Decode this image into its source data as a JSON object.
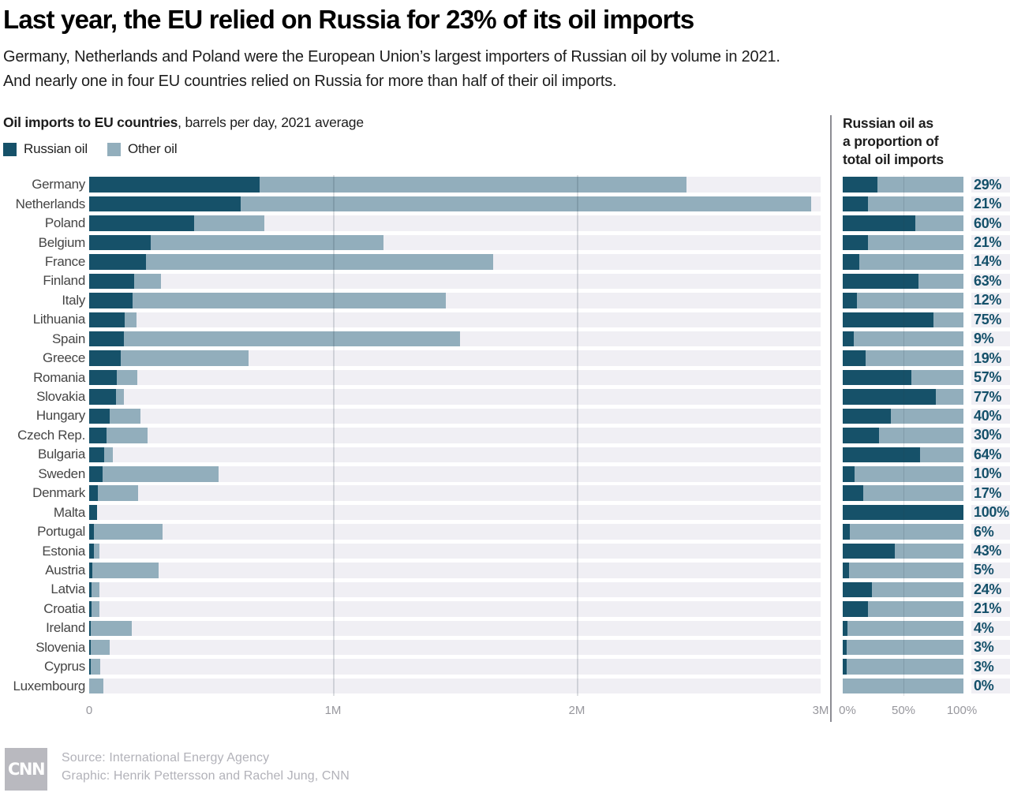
{
  "title": "Last year, the EU relied on Russia for 23% of its oil imports",
  "subtitle": {
    "line1": "Germany, Netherlands and Poland were the European Union’s largest importers of Russian oil by volume in 2021.",
    "line2": "And nearly one in four EU countries relied on Russia for more than half of their oil imports."
  },
  "left_panel": {
    "heading_bold": "Oil imports to EU countries",
    "heading_rest": ", barrels per day, 2021 average"
  },
  "right_panel": {
    "heading_line1": "Russian oil as",
    "heading_line2": "a proportion of",
    "heading_line3": "total oil imports"
  },
  "legend": {
    "items": [
      {
        "label": "Russian oil",
        "color": "#165169"
      },
      {
        "label": "Other oil",
        "color": "#92aebc"
      }
    ]
  },
  "colors": {
    "russian": "#165169",
    "other": "#92aebc",
    "track": "#f0eff4",
    "pct_label": "#14506a",
    "gridline": "rgba(35,55,75,0.16)",
    "axis_text": "#97979d"
  },
  "axis": {
    "left_ticks": [
      "0",
      "1M",
      "2M",
      "3M"
    ],
    "right_ticks": [
      "0%",
      "50%",
      "100%"
    ]
  },
  "chart_data": {
    "type": "bar",
    "orientation": "horizontal",
    "title": "Oil imports to EU countries, barrels per day, 2021 average",
    "xlabel": "barrels per day",
    "xlim": [
      0,
      3000000
    ],
    "x_ticks": [
      0,
      1000000,
      2000000,
      3000000
    ],
    "legend_position": "top-left",
    "categories": [
      "Germany",
      "Netherlands",
      "Poland",
      "Belgium",
      "France",
      "Finland",
      "Italy",
      "Lithuania",
      "Spain",
      "Greece",
      "Romania",
      "Slovakia",
      "Hungary",
      "Czech Rep.",
      "Bulgaria",
      "Sweden",
      "Denmark",
      "Malta",
      "Portugal",
      "Estonia",
      "Austria",
      "Latvia",
      "Croatia",
      "Ireland",
      "Slovenia",
      "Cyprus",
      "Luxembourg"
    ],
    "series": [
      {
        "name": "Russian oil",
        "values": [
          700000,
          620000,
          430000,
          253000,
          232000,
          185000,
          178000,
          145000,
          142000,
          128000,
          113000,
          110000,
          85000,
          72000,
          62000,
          54000,
          34000,
          32000,
          18000,
          18000,
          14000,
          10000,
          9000,
          7000,
          2500,
          1300,
          0
        ]
      },
      {
        "name": "Other oil",
        "values": [
          1750000,
          2340000,
          287000,
          955000,
          1425000,
          108000,
          1285000,
          48000,
          1378000,
          527000,
          85000,
          33000,
          125000,
          166000,
          35000,
          476000,
          166000,
          0,
          282000,
          24000,
          271000,
          32000,
          34000,
          168000,
          79500,
          41700,
          58000
        ]
      }
    ],
    "secondary_chart": {
      "type": "bar",
      "title": "Russian oil as a proportion of total oil imports",
      "xlim": [
        0,
        100
      ],
      "x_ticks": [
        0,
        50,
        100
      ],
      "values_pct": [
        29,
        21,
        60,
        21,
        14,
        63,
        12,
        75,
        9,
        19,
        57,
        77,
        40,
        30,
        64,
        10,
        17,
        100,
        6,
        43,
        5,
        24,
        21,
        4,
        3,
        3,
        0
      ],
      "labels": [
        "29%",
        "21%",
        "60%",
        "21%",
        "14%",
        "63%",
        "12%",
        "75%",
        "9%",
        "19%",
        "57%",
        "77%",
        "40%",
        "30%",
        "64%",
        "10%",
        "17%",
        "100%",
        "6%",
        "43%",
        "5%",
        "24%",
        "21%",
        "4%",
        "3%",
        "3%",
        "0%"
      ]
    }
  },
  "footer": {
    "source": "Source: International Energy Agency",
    "credit": "Graphic: Henrik Pettersson and Rachel Jung, CNN",
    "logo": "CNN"
  }
}
